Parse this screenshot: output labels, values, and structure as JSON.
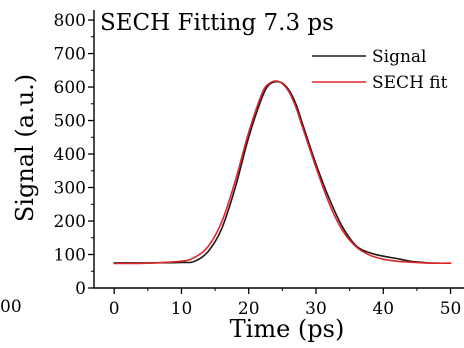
{
  "chart_data": {
    "type": "line",
    "title": "SECH Fitting 7.3 ps",
    "xlabel": "Time (ps)",
    "ylabel": "Signal (a.u.)",
    "xlim": [
      -3,
      52
    ],
    "ylim": [
      0,
      830
    ],
    "x_ticks": [
      0,
      10,
      20,
      30,
      40,
      50
    ],
    "y_ticks": [
      0,
      100,
      200,
      300,
      400,
      500,
      600,
      700,
      800
    ],
    "x_tick_labels": [
      "0",
      "10",
      "20",
      "30",
      "40",
      "50"
    ],
    "y_tick_labels": [
      "0",
      "100",
      "200",
      "300",
      "400",
      "500",
      "600",
      "700",
      "800"
    ],
    "left_edge_label": "00",
    "grid": false,
    "legend": {
      "position": "top-right",
      "entries": [
        "Signal",
        "SECH fit"
      ]
    },
    "series": [
      {
        "name": "Signal",
        "color": "#1a1a1a",
        "x": [
          0,
          5,
          10,
          12,
          14,
          16,
          18,
          20,
          22,
          23,
          24,
          25,
          26,
          27,
          28,
          30,
          32,
          34,
          36,
          38,
          40,
          42,
          44,
          46,
          48,
          50
        ],
        "y": [
          75,
          75,
          76,
          80,
          110,
          178,
          300,
          450,
          570,
          606,
          616,
          612,
          590,
          550,
          490,
          370,
          265,
          180,
          125,
          105,
          95,
          88,
          80,
          76,
          74,
          74
        ]
      },
      {
        "name": "SECH fit",
        "color": "#e0262b",
        "x": [
          0,
          5,
          10,
          12,
          14,
          16,
          18,
          20,
          22,
          23,
          24,
          25,
          26,
          27,
          28,
          30,
          32,
          34,
          36,
          38,
          40,
          42,
          44,
          46,
          48,
          50
        ],
        "y": [
          73,
          74,
          80,
          92,
          125,
          198,
          320,
          465,
          582,
          610,
          618,
          610,
          585,
          540,
          480,
          360,
          250,
          170,
          122,
          98,
          86,
          80,
          77,
          75,
          74,
          74
        ]
      }
    ]
  }
}
